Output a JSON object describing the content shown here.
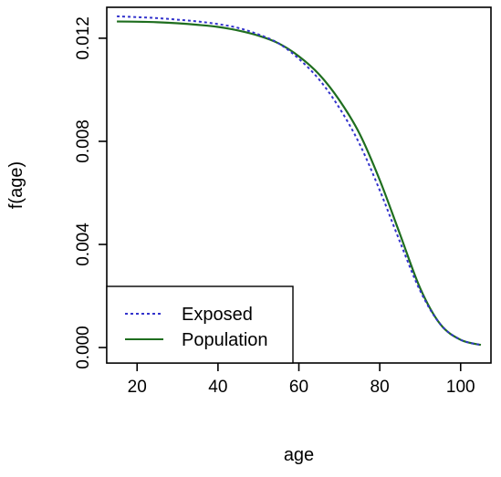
{
  "chart_data": {
    "type": "line",
    "title": "",
    "xlabel": "age",
    "ylabel": "f(age)",
    "xlim": [
      12.5,
      107.5
    ],
    "ylim": [
      -0.0006,
      0.0132
    ],
    "xticks": [
      20,
      40,
      60,
      80,
      100
    ],
    "yticks": [
      0.0,
      0.004,
      0.008,
      0.012
    ],
    "ytick_labels": [
      "0.000",
      "0.004",
      "0.008",
      "0.012"
    ],
    "grid": false,
    "legend_position": "bottom-left",
    "series": [
      {
        "name": "Exposed",
        "style": "dotted",
        "color": "#3333cc",
        "x": [
          15,
          20,
          25,
          30,
          35,
          40,
          45,
          50,
          55,
          60,
          65,
          70,
          75,
          80,
          85,
          90,
          95,
          100,
          105
        ],
        "y": [
          0.01285,
          0.01282,
          0.01278,
          0.01272,
          0.01265,
          0.01255,
          0.0124,
          0.01215,
          0.0118,
          0.0112,
          0.0104,
          0.0093,
          0.0079,
          0.0061,
          0.0041,
          0.0022,
          0.0009,
          0.0003,
          0.0001
        ]
      },
      {
        "name": "Population",
        "style": "solid",
        "color": "#1f6e1f",
        "x": [
          15,
          20,
          25,
          30,
          35,
          40,
          45,
          50,
          55,
          60,
          65,
          70,
          75,
          80,
          85,
          90,
          95,
          100,
          105
        ],
        "y": [
          0.01265,
          0.01264,
          0.01262,
          0.01258,
          0.01252,
          0.01244,
          0.0123,
          0.0121,
          0.0118,
          0.0113,
          0.0106,
          0.0096,
          0.0083,
          0.0065,
          0.0044,
          0.0023,
          0.0009,
          0.0003,
          0.0001
        ]
      }
    ]
  }
}
